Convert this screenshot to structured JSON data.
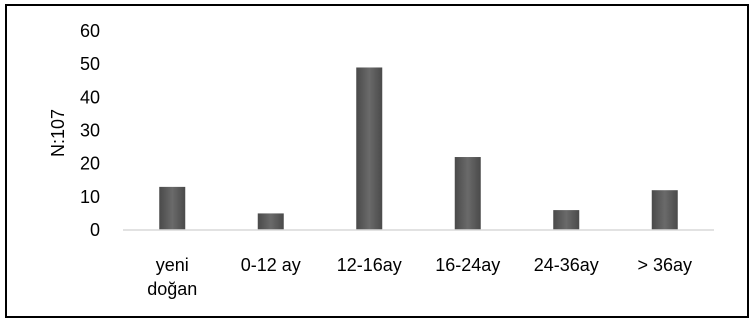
{
  "chart_data": {
    "type": "bar",
    "title": "",
    "xlabel": "",
    "ylabel": "N:107",
    "categories": [
      "yeni doğan",
      "0-12 ay",
      "12-16ay",
      "16-24ay",
      "24-36ay",
      "> 36ay"
    ],
    "values": [
      13,
      5,
      49,
      22,
      6,
      12
    ],
    "ylim": [
      0,
      60
    ],
    "yticks": [
      0,
      10,
      20,
      30,
      40,
      50,
      60
    ],
    "grid": false,
    "legend": "none",
    "bar_color": "#5b5b5b",
    "axis_color": "#d9d9d9"
  }
}
